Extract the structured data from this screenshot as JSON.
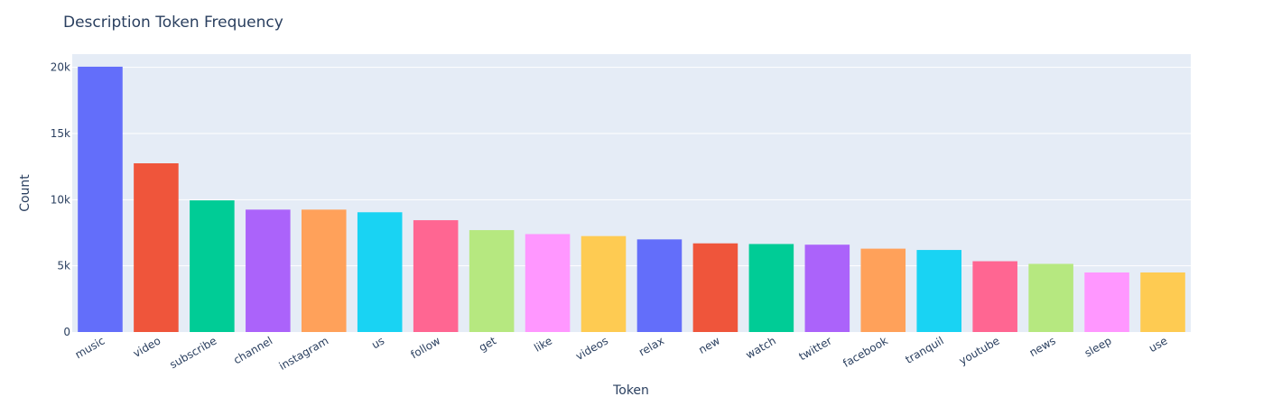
{
  "chart_data": {
    "type": "bar",
    "title": "Description Token Frequency",
    "xlabel": "Token",
    "ylabel": "Count",
    "ylim": [
      0,
      21000
    ],
    "yticks": [
      0,
      5000,
      10000,
      15000,
      20000
    ],
    "ytick_labels": [
      "0",
      "5k",
      "10k",
      "15k",
      "20k"
    ],
    "grid": true,
    "categories": [
      "music",
      "video",
      "subscribe",
      "channel",
      "instagram",
      "us",
      "follow",
      "get",
      "like",
      "videos",
      "relax",
      "new",
      "watch",
      "twitter",
      "facebook",
      "tranquil",
      "youtube",
      "news",
      "sleep",
      "use"
    ],
    "values": [
      20050,
      12750,
      9950,
      9250,
      9250,
      9050,
      8450,
      7700,
      7400,
      7250,
      7000,
      6700,
      6650,
      6600,
      6300,
      6200,
      5350,
      5150,
      4500,
      4500
    ],
    "colors": [
      "#636efa",
      "#EF553B",
      "#00cc96",
      "#ab63fa",
      "#FFA15A",
      "#19d3f3",
      "#FF6692",
      "#B6E880",
      "#FF97FF",
      "#FECB52",
      "#636efa",
      "#EF553B",
      "#00cc96",
      "#ab63fa",
      "#FFA15A",
      "#19d3f3",
      "#FF6692",
      "#B6E880",
      "#FF97FF",
      "#FECB52"
    ],
    "plot_background": "#E5ECF6",
    "grid_color": "#ffffff",
    "text_color": "#2a3f5f"
  }
}
